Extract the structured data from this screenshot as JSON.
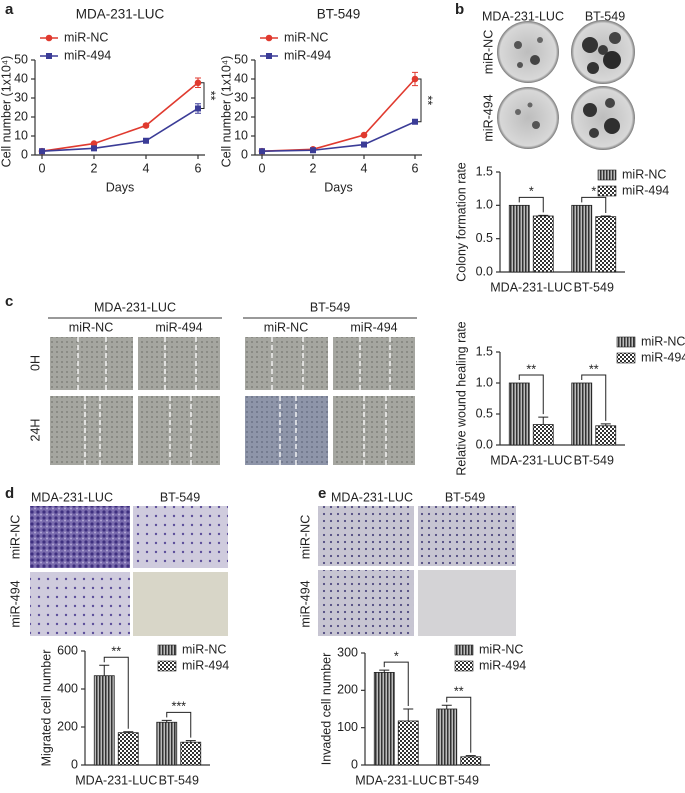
{
  "panel_letters": [
    "a",
    "b",
    "c",
    "d",
    "e"
  ],
  "b_images": {
    "columns": [
      "MDA-231-LUC",
      "BT-549"
    ],
    "rows": [
      "miR-NC",
      "miR-494"
    ]
  },
  "c_images": {
    "groups": [
      "MDA-231-LUC",
      "BT-549"
    ],
    "columns": [
      "miR-NC",
      "miR-494",
      "miR-NC",
      "miR-494"
    ],
    "rows": [
      "0H",
      "24H"
    ]
  },
  "d_images": {
    "columns": [
      "MDA-231-LUC",
      "BT-549"
    ],
    "rows": [
      "miR-NC",
      "miR-494"
    ]
  },
  "e_images": {
    "columns": [
      "MDA-231-LUC",
      "BT-549"
    ],
    "rows": [
      "miR-NC",
      "miR-494"
    ]
  },
  "chart_data": [
    {
      "type": "line",
      "title": "MDA-231-LUC",
      "xlabel": "Days",
      "ylabel": "Cell number (1x10⁴)",
      "x": [
        0,
        2,
        4,
        6
      ],
      "xlim": [
        0,
        6
      ],
      "xticks": [
        0,
        2,
        4,
        6
      ],
      "ylim": [
        0,
        50
      ],
      "yticks": [
        0,
        10,
        20,
        30,
        40,
        50
      ],
      "legend": "upper left",
      "annotation": "**",
      "series": [
        {
          "name": "miR-NC",
          "color": "#e03a2f",
          "marker": "circle",
          "values": [
            2,
            6,
            15.5,
            38
          ],
          "errors": [
            0.3,
            0.5,
            0.8,
            2.5
          ]
        },
        {
          "name": "miR-494",
          "color": "#3b3c97",
          "marker": "square",
          "values": [
            2,
            3.5,
            7.5,
            24.5
          ],
          "errors": [
            0.3,
            0.5,
            1.2,
            2.5
          ]
        }
      ]
    },
    {
      "type": "line",
      "title": "BT-549",
      "xlabel": "Days",
      "ylabel": "Cell number (1x10⁴)",
      "x": [
        0,
        2,
        4,
        6
      ],
      "xlim": [
        0,
        6
      ],
      "xticks": [
        0,
        2,
        4,
        6
      ],
      "ylim": [
        0,
        50
      ],
      "yticks": [
        0,
        10,
        20,
        30,
        40,
        50
      ],
      "legend": "upper left",
      "annotation": "**",
      "series": [
        {
          "name": "miR-NC",
          "color": "#e03a2f",
          "marker": "circle",
          "values": [
            2,
            3,
            10.5,
            40
          ],
          "errors": [
            0.3,
            0.5,
            0.5,
            3.5
          ]
        },
        {
          "name": "miR-494",
          "color": "#3b3c97",
          "marker": "square",
          "values": [
            2,
            2.5,
            5.5,
            17.5
          ],
          "errors": [
            0.2,
            0.3,
            0.5,
            0.8
          ]
        }
      ]
    },
    {
      "type": "bar",
      "ylabel": "Colony formation rate",
      "categories": [
        "MDA-231-LUC",
        "BT-549"
      ],
      "ylim": [
        0,
        1.5
      ],
      "yticks": [
        {
          "value": 0,
          "label": "0.0"
        },
        0.5,
        {
          "value": 1,
          "label": "1.0"
        },
        1.5
      ],
      "legend": "upper right",
      "significance": [
        "*",
        "*"
      ],
      "series": [
        {
          "name": "miR-NC",
          "color": "#333333",
          "pattern": "stripes",
          "values": [
            1,
            1
          ],
          "errors": [
            0,
            0
          ]
        },
        {
          "name": "miR-494",
          "color": "#333333",
          "pattern": "checker",
          "values": [
            0.84,
            0.83
          ],
          "errors": [
            0.01,
            0.01
          ]
        }
      ]
    },
    {
      "type": "bar",
      "ylabel": "Relative wound healing rate",
      "categories": [
        "MDA-231-LUC",
        "BT-549"
      ],
      "ylim": [
        0,
        1.5
      ],
      "yticks": [
        {
          "value": 0,
          "label": "0.0"
        },
        0.5,
        {
          "value": 1,
          "label": "1.0"
        },
        1.5
      ],
      "legend": "upper right",
      "significance": [
        "**",
        "**"
      ],
      "series": [
        {
          "name": "miR-NC",
          "color": "#333333",
          "pattern": "stripes",
          "values": [
            1,
            1
          ],
          "errors": [
            0,
            0
          ]
        },
        {
          "name": "miR-494",
          "color": "#333333",
          "pattern": "checker",
          "values": [
            0.33,
            0.31
          ],
          "errors": [
            0.12,
            0.03
          ]
        }
      ]
    },
    {
      "type": "bar",
      "ylabel": "Migrated cell number",
      "categories": [
        "MDA-231-LUC",
        "BT-549"
      ],
      "ylim": [
        0,
        600
      ],
      "yticks": [
        0,
        200,
        400,
        600
      ],
      "legend": "upper right",
      "significance": [
        "**",
        "***"
      ],
      "series": [
        {
          "name": "miR-NC",
          "color": "#333333",
          "pattern": "stripes",
          "values": [
            470,
            225
          ],
          "errors": [
            55,
            10
          ]
        },
        {
          "name": "miR-494",
          "color": "#333333",
          "pattern": "checker",
          "values": [
            170,
            120
          ],
          "errors": [
            5,
            8
          ]
        }
      ]
    },
    {
      "type": "bar",
      "ylabel": "Invaded cell number",
      "categories": [
        "MDA-231-LUC",
        "BT-549"
      ],
      "ylim": [
        0,
        300
      ],
      "yticks": [
        0,
        100,
        200,
        300
      ],
      "legend": "upper right",
      "significance": [
        "*",
        "**"
      ],
      "series": [
        {
          "name": "miR-NC",
          "color": "#333333",
          "pattern": "stripes",
          "values": [
            248,
            150
          ],
          "errors": [
            6,
            10
          ]
        },
        {
          "name": "miR-494",
          "color": "#333333",
          "pattern": "checker",
          "values": [
            118,
            22
          ],
          "errors": [
            32,
            3
          ]
        }
      ]
    }
  ]
}
